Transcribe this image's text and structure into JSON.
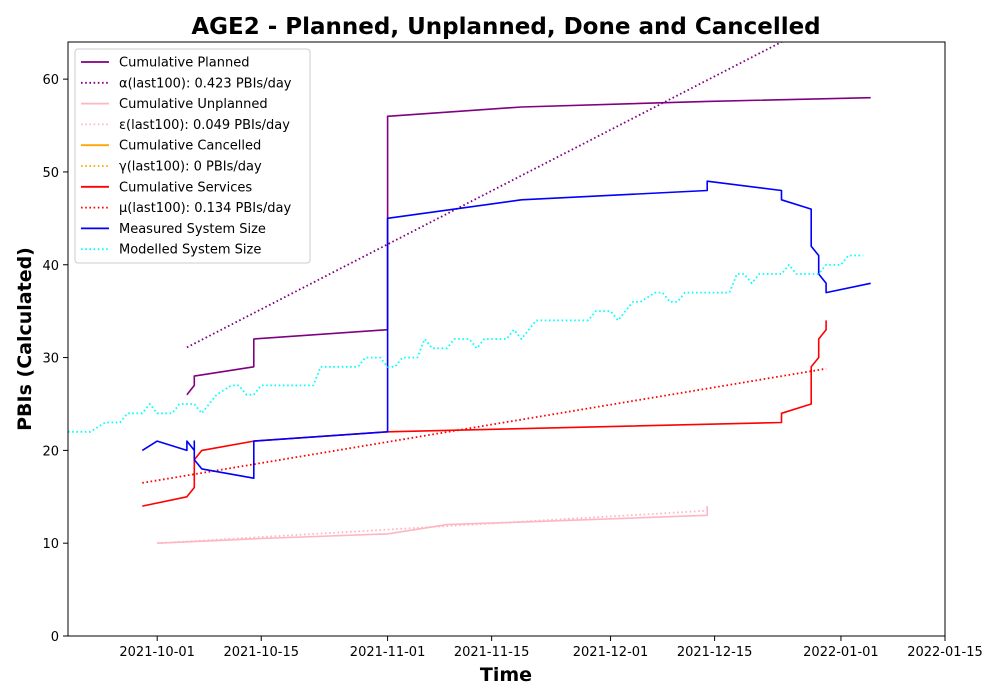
{
  "chart_data": {
    "type": "line",
    "title": "AGE2 - Planned, Unplanned, Done  and Cancelled",
    "xlabel": "Time",
    "ylabel": "PBIs (Calculated)",
    "x_axis_type": "date",
    "xlim": [
      "2021-09-19",
      "2022-01-15"
    ],
    "ylim": [
      0,
      64
    ],
    "x_ticks": [
      "2021-10-01",
      "2021-10-15",
      "2021-11-01",
      "2021-11-15",
      "2021-12-01",
      "2021-12-15",
      "2022-01-01",
      "2022-01-15"
    ],
    "y_ticks": [
      0,
      10,
      20,
      30,
      40,
      50,
      60
    ],
    "grid": false,
    "legend_position": "top-left",
    "series": [
      {
        "name": "Cumulative Planned",
        "color": "#800080",
        "style": "solid",
        "points": [
          [
            "2021-10-05",
            26
          ],
          [
            "2021-10-06",
            27
          ],
          [
            "2021-10-06",
            28
          ],
          [
            "2021-10-14",
            29
          ],
          [
            "2021-10-14",
            32
          ],
          [
            "2021-11-01",
            33
          ],
          [
            "2021-11-01",
            53
          ],
          [
            "2021-11-01",
            56
          ],
          [
            "2021-11-19",
            57
          ],
          [
            "2021-12-14",
            57.6
          ],
          [
            "2022-01-05",
            58
          ]
        ]
      },
      {
        "name": "α(last100): 0.423 PBIs/day",
        "color": "#800080",
        "style": "dotted",
        "points": [
          [
            "2021-10-05",
            31.1
          ],
          [
            "2021-12-24",
            64
          ]
        ]
      },
      {
        "name": "Cumulative Unplanned",
        "color": "#ffb6c1",
        "style": "solid",
        "points": [
          [
            "2021-10-01",
            10
          ],
          [
            "2021-10-15",
            10.5
          ],
          [
            "2021-11-01",
            11
          ],
          [
            "2021-11-09",
            12
          ],
          [
            "2021-11-20",
            12.3
          ],
          [
            "2021-12-14",
            13
          ],
          [
            "2021-12-14",
            14
          ]
        ]
      },
      {
        "name": "ε(last100): 0.049 PBIs/day",
        "color": "#ffb6c1",
        "style": "dotted",
        "points": [
          [
            "2021-10-01",
            10
          ],
          [
            "2021-12-14",
            13.5
          ]
        ]
      },
      {
        "name": "Cumulative Cancelled",
        "color": "#ffa500",
        "style": "solid",
        "points": []
      },
      {
        "name": "γ(last100): 0 PBIs/day",
        "color": "#ffa500",
        "style": "dotted",
        "points": []
      },
      {
        "name": "Cumulative Services",
        "color": "#ff0000",
        "style": "solid",
        "points": [
          [
            "2021-09-29",
            14
          ],
          [
            "2021-10-05",
            15
          ],
          [
            "2021-10-06",
            16
          ],
          [
            "2021-10-06",
            19
          ],
          [
            "2021-10-07",
            20
          ],
          [
            "2021-10-14",
            21
          ],
          [
            "2021-11-01",
            22
          ],
          [
            "2021-12-24",
            23
          ],
          [
            "2021-12-24",
            24
          ],
          [
            "2021-12-28",
            25
          ],
          [
            "2021-12-28",
            29
          ],
          [
            "2021-12-29",
            30
          ],
          [
            "2021-12-29",
            32
          ],
          [
            "2021-12-30",
            33
          ],
          [
            "2021-12-30",
            34
          ]
        ]
      },
      {
        "name": "μ(last100): 0.134 PBIs/day",
        "color": "#ff0000",
        "style": "dotted",
        "points": [
          [
            "2021-09-29",
            16.5
          ],
          [
            "2021-12-30",
            28.8
          ]
        ]
      },
      {
        "name": "Measured System Size",
        "color": "#0000ff",
        "style": "solid",
        "points": [
          [
            "2021-09-29",
            20
          ],
          [
            "2021-10-01",
            21
          ],
          [
            "2021-10-05",
            20
          ],
          [
            "2021-10-05",
            21
          ],
          [
            "2021-10-06",
            20
          ],
          [
            "2021-10-06",
            19
          ],
          [
            "2021-10-06",
            21
          ],
          [
            "2021-10-06",
            19
          ],
          [
            "2021-10-07",
            18
          ],
          [
            "2021-10-14",
            17
          ],
          [
            "2021-10-14",
            21
          ],
          [
            "2021-11-01",
            22
          ],
          [
            "2021-11-01",
            45
          ],
          [
            "2021-11-19",
            47
          ],
          [
            "2021-12-14",
            48
          ],
          [
            "2021-12-14",
            49
          ],
          [
            "2021-12-24",
            48
          ],
          [
            "2021-12-24",
            47
          ],
          [
            "2021-12-28",
            46
          ],
          [
            "2021-12-28",
            42
          ],
          [
            "2021-12-29",
            41
          ],
          [
            "2021-12-29",
            39
          ],
          [
            "2021-12-30",
            38
          ],
          [
            "2021-12-30",
            37
          ],
          [
            "2022-01-05",
            38
          ]
        ]
      },
      {
        "name": "Modelled System Size",
        "color": "#00ffff",
        "style": "dotted",
        "points": [
          [
            "2021-09-19",
            22
          ],
          [
            "2021-09-22",
            22
          ],
          [
            "2021-09-24",
            23
          ],
          [
            "2021-09-26",
            23
          ],
          [
            "2021-09-27",
            24
          ],
          [
            "2021-09-29",
            24
          ],
          [
            "2021-09-30",
            25
          ],
          [
            "2021-10-01",
            24
          ],
          [
            "2021-10-03",
            24
          ],
          [
            "2021-10-04",
            25
          ],
          [
            "2021-10-06",
            25
          ],
          [
            "2021-10-07",
            24
          ],
          [
            "2021-10-08",
            25
          ],
          [
            "2021-10-09",
            26
          ],
          [
            "2021-10-11",
            27
          ],
          [
            "2021-10-12",
            27
          ],
          [
            "2021-10-13",
            26
          ],
          [
            "2021-10-14",
            26
          ],
          [
            "2021-10-15",
            27
          ],
          [
            "2021-10-22",
            27
          ],
          [
            "2021-10-23",
            29
          ],
          [
            "2021-10-28",
            29
          ],
          [
            "2021-10-29",
            30
          ],
          [
            "2021-10-31",
            30
          ],
          [
            "2021-11-01",
            29
          ],
          [
            "2021-11-02",
            29
          ],
          [
            "2021-11-03",
            30
          ],
          [
            "2021-11-05",
            30
          ],
          [
            "2021-11-06",
            32
          ],
          [
            "2021-11-07",
            31
          ],
          [
            "2021-11-09",
            31
          ],
          [
            "2021-11-10",
            32
          ],
          [
            "2021-11-12",
            32
          ],
          [
            "2021-11-13",
            31
          ],
          [
            "2021-11-14",
            32
          ],
          [
            "2021-11-17",
            32
          ],
          [
            "2021-11-18",
            33
          ],
          [
            "2021-11-19",
            32
          ],
          [
            "2021-11-20",
            33
          ],
          [
            "2021-11-21",
            34
          ],
          [
            "2021-11-28",
            34
          ],
          [
            "2021-11-29",
            35
          ],
          [
            "2021-12-01",
            35
          ],
          [
            "2021-12-02",
            34
          ],
          [
            "2021-12-03",
            35
          ],
          [
            "2021-12-04",
            36
          ],
          [
            "2021-12-05",
            36
          ],
          [
            "2021-12-07",
            37
          ],
          [
            "2021-12-08",
            37
          ],
          [
            "2021-12-09",
            36
          ],
          [
            "2021-12-10",
            36
          ],
          [
            "2021-12-11",
            37
          ],
          [
            "2021-12-17",
            37
          ],
          [
            "2021-12-18",
            39
          ],
          [
            "2021-12-19",
            39
          ],
          [
            "2021-12-20",
            38
          ],
          [
            "2021-12-21",
            39
          ],
          [
            "2021-12-24",
            39
          ],
          [
            "2021-12-25",
            40
          ],
          [
            "2021-12-26",
            39
          ],
          [
            "2021-12-29",
            39
          ],
          [
            "2021-12-30",
            40
          ],
          [
            "2022-01-01",
            40
          ],
          [
            "2022-01-02",
            41
          ],
          [
            "2022-01-04",
            41
          ]
        ]
      }
    ]
  }
}
